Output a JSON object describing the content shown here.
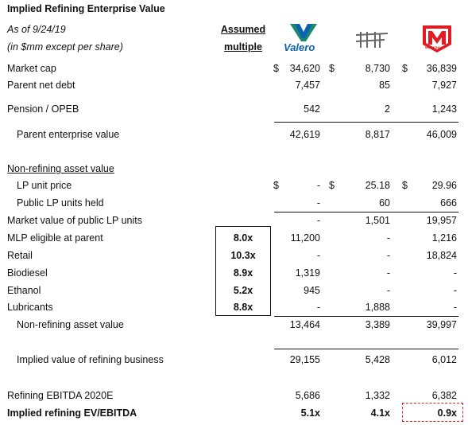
{
  "header": {
    "title": "Implied Refining Enterprise Value",
    "as_of": "As of 9/24/19",
    "units": "(in $mm except per share)",
    "assumed_label": "Assumed",
    "multiple_label": "multiple"
  },
  "logos": {
    "valero": {
      "icon": "valero-v-logo",
      "text": "Valero",
      "color": "#0a62b0",
      "accent": "#1a8a6e"
    },
    "hf": {
      "icon": "hollyfrontier-hf-logo",
      "color": "#555555"
    },
    "marathon": {
      "icon": "marathon-m-logo",
      "text": "MARATHON",
      "color": "#e11b22"
    }
  },
  "rows": {
    "market_cap": {
      "label": "Market cap",
      "d1": "$",
      "v1": "34,620",
      "d2": "$",
      "v2": "8,730",
      "d3": "$",
      "v3": "36,839"
    },
    "parent_net_debt": {
      "label": "Parent net debt",
      "v1": "7,457",
      "v2": "85",
      "v3": "7,927"
    },
    "pension": {
      "label": "Pension / OPEB",
      "v1": "542",
      "v2": "2",
      "v3": "1,243"
    },
    "parent_ev": {
      "label": "Parent enterprise value",
      "v1": "42,619",
      "v2": "8,817",
      "v3": "46,009"
    },
    "non_refining_header": {
      "label": "Non-refining asset value"
    },
    "lp_unit_price": {
      "label": "LP unit price",
      "d1": "$",
      "v1": "-",
      "d2": "$",
      "v2": "25.18",
      "d3": "$",
      "v3": "29.96"
    },
    "public_lp_units": {
      "label": "Public LP units held",
      "v1": "-",
      "v2": "60",
      "v3": "666"
    },
    "market_value_lp": {
      "label": "Market value of public LP units",
      "v1": "-",
      "v2": "1,501",
      "v3": "19,957"
    },
    "mlp_eligible": {
      "label": "MLP eligible at parent",
      "mult": "8.0x",
      "v1": "11,200",
      "v2": "-",
      "v3": "1,216"
    },
    "retail": {
      "label": "Retail",
      "mult": "10.3x",
      "v1": "-",
      "v2": "-",
      "v3": "18,824"
    },
    "biodiesel": {
      "label": "Biodiesel",
      "mult": "8.9x",
      "v1": "1,319",
      "v2": "-",
      "v3": "-"
    },
    "ethanol": {
      "label": "Ethanol",
      "mult": "5.2x",
      "v1": "945",
      "v2": "-",
      "v3": "-"
    },
    "lubricants": {
      "label": "Lubricants",
      "mult": "8.8x",
      "v1": "-",
      "v2": "1,888",
      "v3": "-"
    },
    "non_refining_total": {
      "label": "Non-refining asset value",
      "v1": "13,464",
      "v2": "3,389",
      "v3": "39,997"
    },
    "implied_refining": {
      "label": "Implied value of refining business",
      "v1": "29,155",
      "v2": "5,428",
      "v3": "6,012"
    },
    "refining_ebitda": {
      "label": "Refining EBITDA 2020E",
      "v1": "5,686",
      "v2": "1,332",
      "v3": "6,382"
    },
    "implied_ev_ebitda": {
      "label": "Implied refining EV/EBITDA",
      "v1": "5.1x",
      "v2": "4.1x",
      "v3": "0.9x"
    }
  },
  "colors": {
    "highlight_box": "#e0211f",
    "text": "#111111"
  }
}
